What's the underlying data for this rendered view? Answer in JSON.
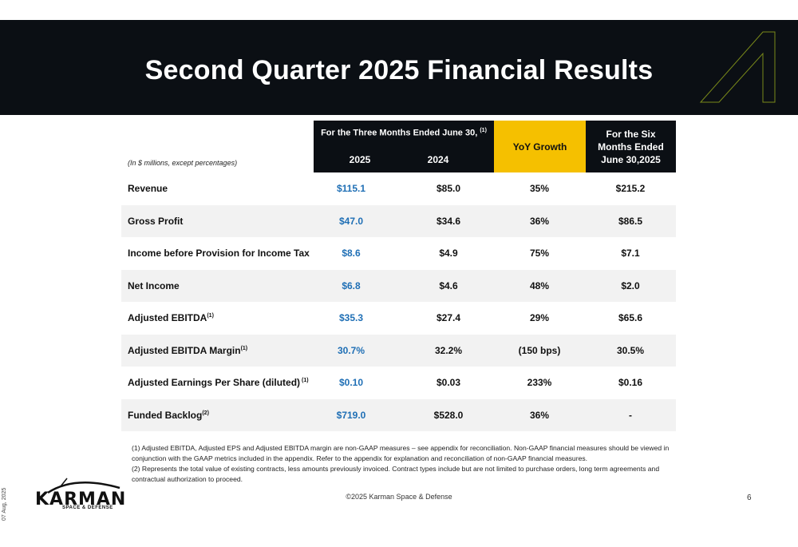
{
  "slide": {
    "title": "Second Quarter 2025 Financial Results",
    "units_note": "(In $ millions, except percentages)",
    "page_number": "6",
    "copyright": "©2025 Karman Space & Defense",
    "date": "07 Aug, 2025"
  },
  "logo": {
    "name": "KARMAN",
    "tagline": "SPACE & DEFENSE"
  },
  "table": {
    "header_three_months": "For the Three Months Ended June 30,",
    "header_three_months_note": "(1)",
    "year_1": "2025",
    "year_2": "2024",
    "header_yoy": "YoY Growth",
    "header_six_months": "For the Six Months Ended June 30,2025",
    "rows": [
      {
        "label": "Revenue",
        "note": "",
        "v2025": "$115.1",
        "v2024": "$85.0",
        "yoy": "35%",
        "six": "$215.2"
      },
      {
        "label": "Gross Profit",
        "note": "",
        "v2025": "$47.0",
        "v2024": "$34.6",
        "yoy": "36%",
        "six": "$86.5"
      },
      {
        "label": "Income before Provision for Income Tax",
        "note": "",
        "v2025": "$8.6",
        "v2024": "$4.9",
        "yoy": "75%",
        "six": "$7.1"
      },
      {
        "label": "Net Income",
        "note": "",
        "v2025": "$6.8",
        "v2024": "$4.6",
        "yoy": "48%",
        "six": "$2.0"
      },
      {
        "label": "Adjusted EBITDA",
        "note": "(1)",
        "v2025": "$35.3",
        "v2024": "$27.4",
        "yoy": "29%",
        "six": "$65.6"
      },
      {
        "label": "Adjusted EBITDA Margin",
        "note": "(1)",
        "v2025": "30.7%",
        "v2024": "32.2%",
        "yoy": "(150 bps)",
        "six": "30.5%"
      },
      {
        "label": "Adjusted Earnings Per Share (diluted)",
        "note": " (1)",
        "v2025": "$0.10",
        "v2024": "$0.03",
        "yoy": "233%",
        "six": "$0.16"
      },
      {
        "label": "Funded Backlog",
        "note": "(2)",
        "v2025": "$719.0",
        "v2024": "$528.0",
        "yoy": "36%",
        "six": "-"
      }
    ]
  },
  "footnotes": [
    "(1) Adjusted EBITDA, Adjusted EPS and Adjusted EBITDA margin are non-GAAP measures – see appendix for reconciliation. Non-GAAP financial measures should be viewed in conjunction with the GAAP metrics included in the appendix. Refer to the appendix for explanation and reconciliation of non-GAAP financial measures.",
    "(2) Represents the total value of existing contracts, less amounts previously invoiced. Contract types include but are not limited to purchase orders, long term agreements and contractual authorization to proceed."
  ],
  "colors": {
    "banner": "#0b0f14",
    "accent_yellow": "#f5c000",
    "value_blue": "#1f6fb5",
    "row_shade": "#f2f2f2"
  },
  "icons": {
    "banner_decoration": "outlined-a-mark-icon",
    "logo_swoosh": "orbit-swoosh-icon"
  }
}
